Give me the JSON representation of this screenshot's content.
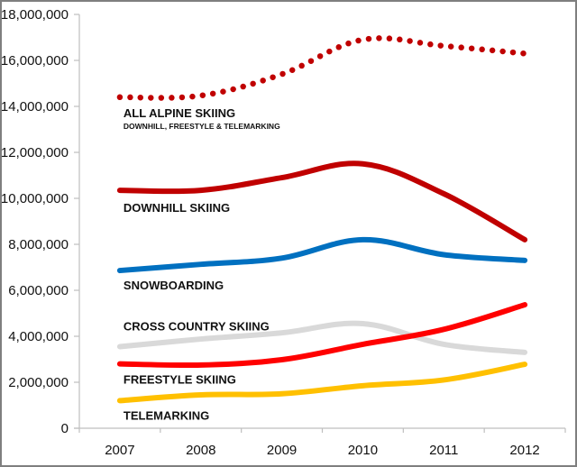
{
  "chart_data": {
    "type": "line",
    "title": "",
    "xlabel": "",
    "ylabel": "",
    "categories": [
      "2007",
      "2008",
      "2009",
      "2010",
      "2011",
      "2012"
    ],
    "ylim": [
      0,
      18000000
    ],
    "yticks": [
      0,
      2000000,
      4000000,
      6000000,
      8000000,
      10000000,
      12000000,
      14000000,
      16000000,
      18000000
    ],
    "ytick_labels": [
      "0",
      "2,000,000",
      "4,000,000",
      "6,000,000",
      "8,000,000",
      "10,000,000",
      "12,000,000",
      "14,000,000",
      "16,000,000",
      "18,000,000"
    ],
    "grid": false,
    "legend": "inline labels below each line",
    "series": [
      {
        "name": "All Alpine Skiing",
        "label": "ALL ALPINE SKIING",
        "sublabel": "DOWNHILL, FREESTYLE & TELEMARKING",
        "color": "#c00000",
        "style": "dotted",
        "values": [
          14400000,
          14470000,
          15400000,
          16900000,
          16630000,
          16300000
        ]
      },
      {
        "name": "Downhill Skiing",
        "label": "DOWNHILL SKIING",
        "color": "#c00000",
        "style": "solid",
        "values": [
          10350000,
          10350000,
          10900000,
          11500000,
          10200000,
          8200000
        ]
      },
      {
        "name": "Snowboarding",
        "label": "SNOWBOARDING",
        "color": "#0070c0",
        "style": "solid",
        "values": [
          6860000,
          7130000,
          7400000,
          8200000,
          7550000,
          7300000
        ]
      },
      {
        "name": "Cross Country Skiing",
        "label": "CROSS COUNTRY SKIING",
        "color": "#d9d9d9",
        "style": "solid",
        "values": [
          3550000,
          3880000,
          4150000,
          4550000,
          3650000,
          3300000
        ]
      },
      {
        "name": "Freestyle Skiing",
        "label": "FREESTYLE SKIING",
        "color": "#ff0000",
        "style": "solid",
        "values": [
          2800000,
          2750000,
          2980000,
          3650000,
          4300000,
          5370000
        ]
      },
      {
        "name": "Telemarking",
        "label": "TELEMARKING",
        "color": "#ffc000",
        "style": "solid",
        "values": [
          1200000,
          1450000,
          1500000,
          1850000,
          2100000,
          2780000
        ]
      }
    ]
  }
}
